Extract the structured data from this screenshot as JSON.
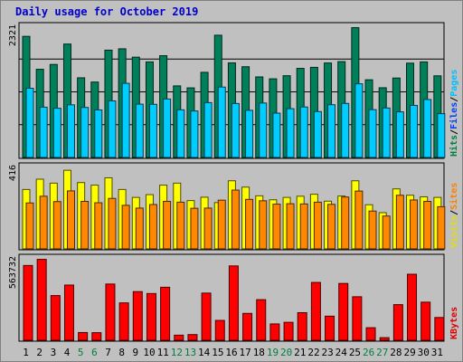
{
  "chart_data": {
    "type": "bar",
    "title": "Daily usage for October 2019",
    "categories": [
      "1",
      "2",
      "3",
      "4",
      "5",
      "6",
      "7",
      "8",
      "9",
      "10",
      "11",
      "12",
      "13",
      "14",
      "15",
      "16",
      "17",
      "18",
      "19",
      "20",
      "21",
      "22",
      "23",
      "24",
      "25",
      "26",
      "27",
      "28",
      "29",
      "30",
      "31"
    ],
    "weekend_days": [
      "5",
      "6",
      "12",
      "13",
      "19",
      "20",
      "26",
      "27"
    ],
    "panels": [
      {
        "id": "pages-files-hits",
        "max_label": "2321",
        "ymax": 2321,
        "legend": [
          {
            "text": "Hits",
            "color": "#008040"
          },
          {
            "text": "/",
            "color": "#000000"
          },
          {
            "text": "Files",
            "color": "#0040ff"
          },
          {
            "text": "/",
            "color": "#000000"
          },
          {
            "text": "Pages",
            "color": "#00c0ff"
          }
        ],
        "series": [
          {
            "name": "Hits",
            "color": "#00805a",
            "values": [
              2142,
              1560,
              1645,
              2006,
              1409,
              1334,
              1898,
              1922,
              1774,
              1690,
              1800,
              1266,
              1231,
              1506,
              2162,
              1673,
              1605,
              1425,
              1391,
              1446,
              1576,
              1594,
              1671,
              1695,
              2296,
              1374,
              1233,
              1405,
              1668,
              1690,
              1444
            ]
          },
          {
            "name": "Files",
            "color": "#0040ff",
            "values": [
              null,
              null,
              null,
              null,
              null,
              null,
              null,
              null,
              null,
              null,
              null,
              null,
              null,
              null,
              null,
              null,
              null,
              null,
              null,
              null,
              null,
              null,
              null,
              null,
              null,
              null,
              null,
              null,
              null,
              null,
              null
            ]
          },
          {
            "name": "Pages",
            "color": "#00ccff",
            "values": [
              1224,
              890,
              871,
              931,
              885,
              841,
              1001,
              1311,
              943,
              940,
              1034,
              843,
              822,
              970,
              1245,
              954,
              834,
              963,
              784,
              863,
              893,
              812,
              933,
              956,
              1303,
              846,
              875,
              807,
              921,
              1025,
              775
            ]
          }
        ]
      },
      {
        "id": "sites-visits",
        "max_label": "416",
        "ymax": 416,
        "legend": [
          {
            "text": "Visits",
            "color": "#e0e000"
          },
          {
            "text": "/",
            "color": "#000000"
          },
          {
            "text": "Sites",
            "color": "#ff8000"
          }
        ],
        "series": [
          {
            "name": "Visits",
            "color": "#ffff00",
            "values": [
              300,
              352,
              332,
              397,
              335,
              322,
              359,
              300,
              260,
              274,
              322,
              332,
              244,
              261,
              234,
              344,
              312,
              268,
              248,
              260,
              266,
              276,
              241,
              267,
              344,
              223,
              183,
              303,
              271,
              263,
              260
            ]
          },
          {
            "name": "Sites",
            "color": "#ff8800",
            "values": [
              232,
              266,
              239,
              293,
              240,
              233,
              255,
              220,
              206,
              224,
              240,
              236,
              205,
              206,
              246,
              297,
              250,
              243,
              226,
              228,
              227,
              236,
              225,
              262,
              292,
              191,
              166,
              271,
              247,
              240,
              213
            ]
          }
        ]
      },
      {
        "id": "kbytes",
        "max_label": "563732",
        "ymax": 563732,
        "legend": [
          {
            "text": "KBytes",
            "color": "#e00000"
          }
        ],
        "series": [
          {
            "name": "KBytes",
            "color": "#ff0000",
            "values": [
              512000,
              554000,
              306000,
              378000,
              53000,
              52000,
              385000,
              256000,
              333000,
              320000,
              363000,
              35000,
              39000,
              323000,
              136000,
              509000,
              184000,
              278000,
              112000,
              123000,
              189000,
              396000,
              165000,
              389000,
              298000,
              86000,
              18000,
              244000,
              452000,
              261000,
              156000
            ]
          }
        ]
      }
    ]
  }
}
